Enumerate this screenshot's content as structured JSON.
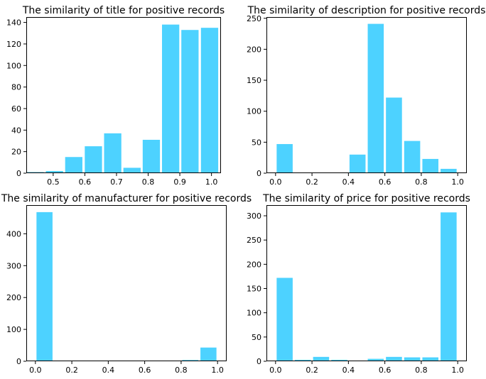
{
  "chart_data": [
    {
      "type": "bar",
      "title": "The similarity of title for positive records",
      "xlabel": "",
      "ylabel": "",
      "xlim": [
        0.415,
        1.03
      ],
      "ylim": [
        0,
        145
      ],
      "xticks": [
        0.5,
        0.6,
        0.7,
        0.8,
        0.9,
        1.0
      ],
      "xtick_labels": [
        "0.5",
        "0.6",
        "0.7",
        "0.8",
        "0.9",
        "1.0"
      ],
      "yticks": [
        0,
        20,
        40,
        60,
        80,
        100,
        120,
        140
      ],
      "ytick_labels": [
        "0",
        "20",
        "40",
        "60",
        "80",
        "100",
        "120",
        "140"
      ],
      "bar_width": 0.0545,
      "x": [
        0.443,
        0.504,
        0.565,
        0.627,
        0.688,
        0.749,
        0.81,
        0.871,
        0.932,
        0.994
      ],
      "values": [
        1,
        2,
        15,
        25,
        37,
        5,
        31,
        138,
        133,
        135
      ],
      "grid": false,
      "color": "#4dd2ff"
    },
    {
      "type": "bar",
      "title": "The similarity of description for positive records",
      "xlabel": "",
      "ylabel": "",
      "xlim": [
        -0.05,
        1.05
      ],
      "ylim": [
        0,
        252
      ],
      "xticks": [
        0.0,
        0.2,
        0.4,
        0.6,
        0.8,
        1.0
      ],
      "xtick_labels": [
        "0.0",
        "0.2",
        "0.4",
        "0.6",
        "0.8",
        "1.0"
      ],
      "yticks": [
        0,
        50,
        100,
        150,
        200,
        250
      ],
      "ytick_labels": [
        "0",
        "50",
        "100",
        "150",
        "200",
        "250"
      ],
      "bar_width": 0.088,
      "x": [
        0.05,
        0.15,
        0.25,
        0.35,
        0.45,
        0.55,
        0.65,
        0.75,
        0.85,
        0.95
      ],
      "values": [
        47,
        0,
        0,
        1,
        30,
        241,
        122,
        52,
        23,
        7
      ],
      "grid": false,
      "color": "#4dd2ff"
    },
    {
      "type": "bar",
      "title": "The similarity of manufacturer for positive records",
      "xlabel": "",
      "ylabel": "",
      "xlim": [
        -0.05,
        1.05
      ],
      "ylim": [
        0,
        490
      ],
      "xticks": [
        0.0,
        0.2,
        0.4,
        0.6,
        0.8,
        1.0
      ],
      "xtick_labels": [
        "0.0",
        "0.2",
        "0.4",
        "0.6",
        "0.8",
        "1.0"
      ],
      "yticks": [
        0,
        100,
        200,
        300,
        400
      ],
      "ytick_labels": [
        "0",
        "100",
        "200",
        "300",
        "400"
      ],
      "bar_width": 0.088,
      "x": [
        0.05,
        0.15,
        0.25,
        0.35,
        0.45,
        0.55,
        0.65,
        0.75,
        0.85,
        0.95
      ],
      "values": [
        468,
        0,
        0,
        0,
        0,
        0,
        2,
        0,
        4,
        43
      ],
      "grid": false,
      "color": "#4dd2ff"
    },
    {
      "type": "bar",
      "title": "The similarity of price for positive records",
      "xlabel": "",
      "ylabel": "",
      "xlim": [
        -0.05,
        1.05
      ],
      "ylim": [
        0,
        322
      ],
      "xticks": [
        0.0,
        0.2,
        0.4,
        0.6,
        0.8,
        1.0
      ],
      "xtick_labels": [
        "0.0",
        "0.2",
        "0.4",
        "0.6",
        "0.8",
        "1.0"
      ],
      "yticks": [
        0,
        50,
        100,
        150,
        200,
        250,
        300
      ],
      "ytick_labels": [
        "0",
        "50",
        "100",
        "150",
        "200",
        "250",
        "300"
      ],
      "bar_width": 0.088,
      "x": [
        0.05,
        0.15,
        0.25,
        0.35,
        0.45,
        0.55,
        0.65,
        0.75,
        0.85,
        0.95
      ],
      "values": [
        172,
        3,
        9,
        3,
        0,
        5,
        9,
        8,
        8,
        307
      ],
      "grid": false,
      "color": "#4dd2ff"
    }
  ]
}
